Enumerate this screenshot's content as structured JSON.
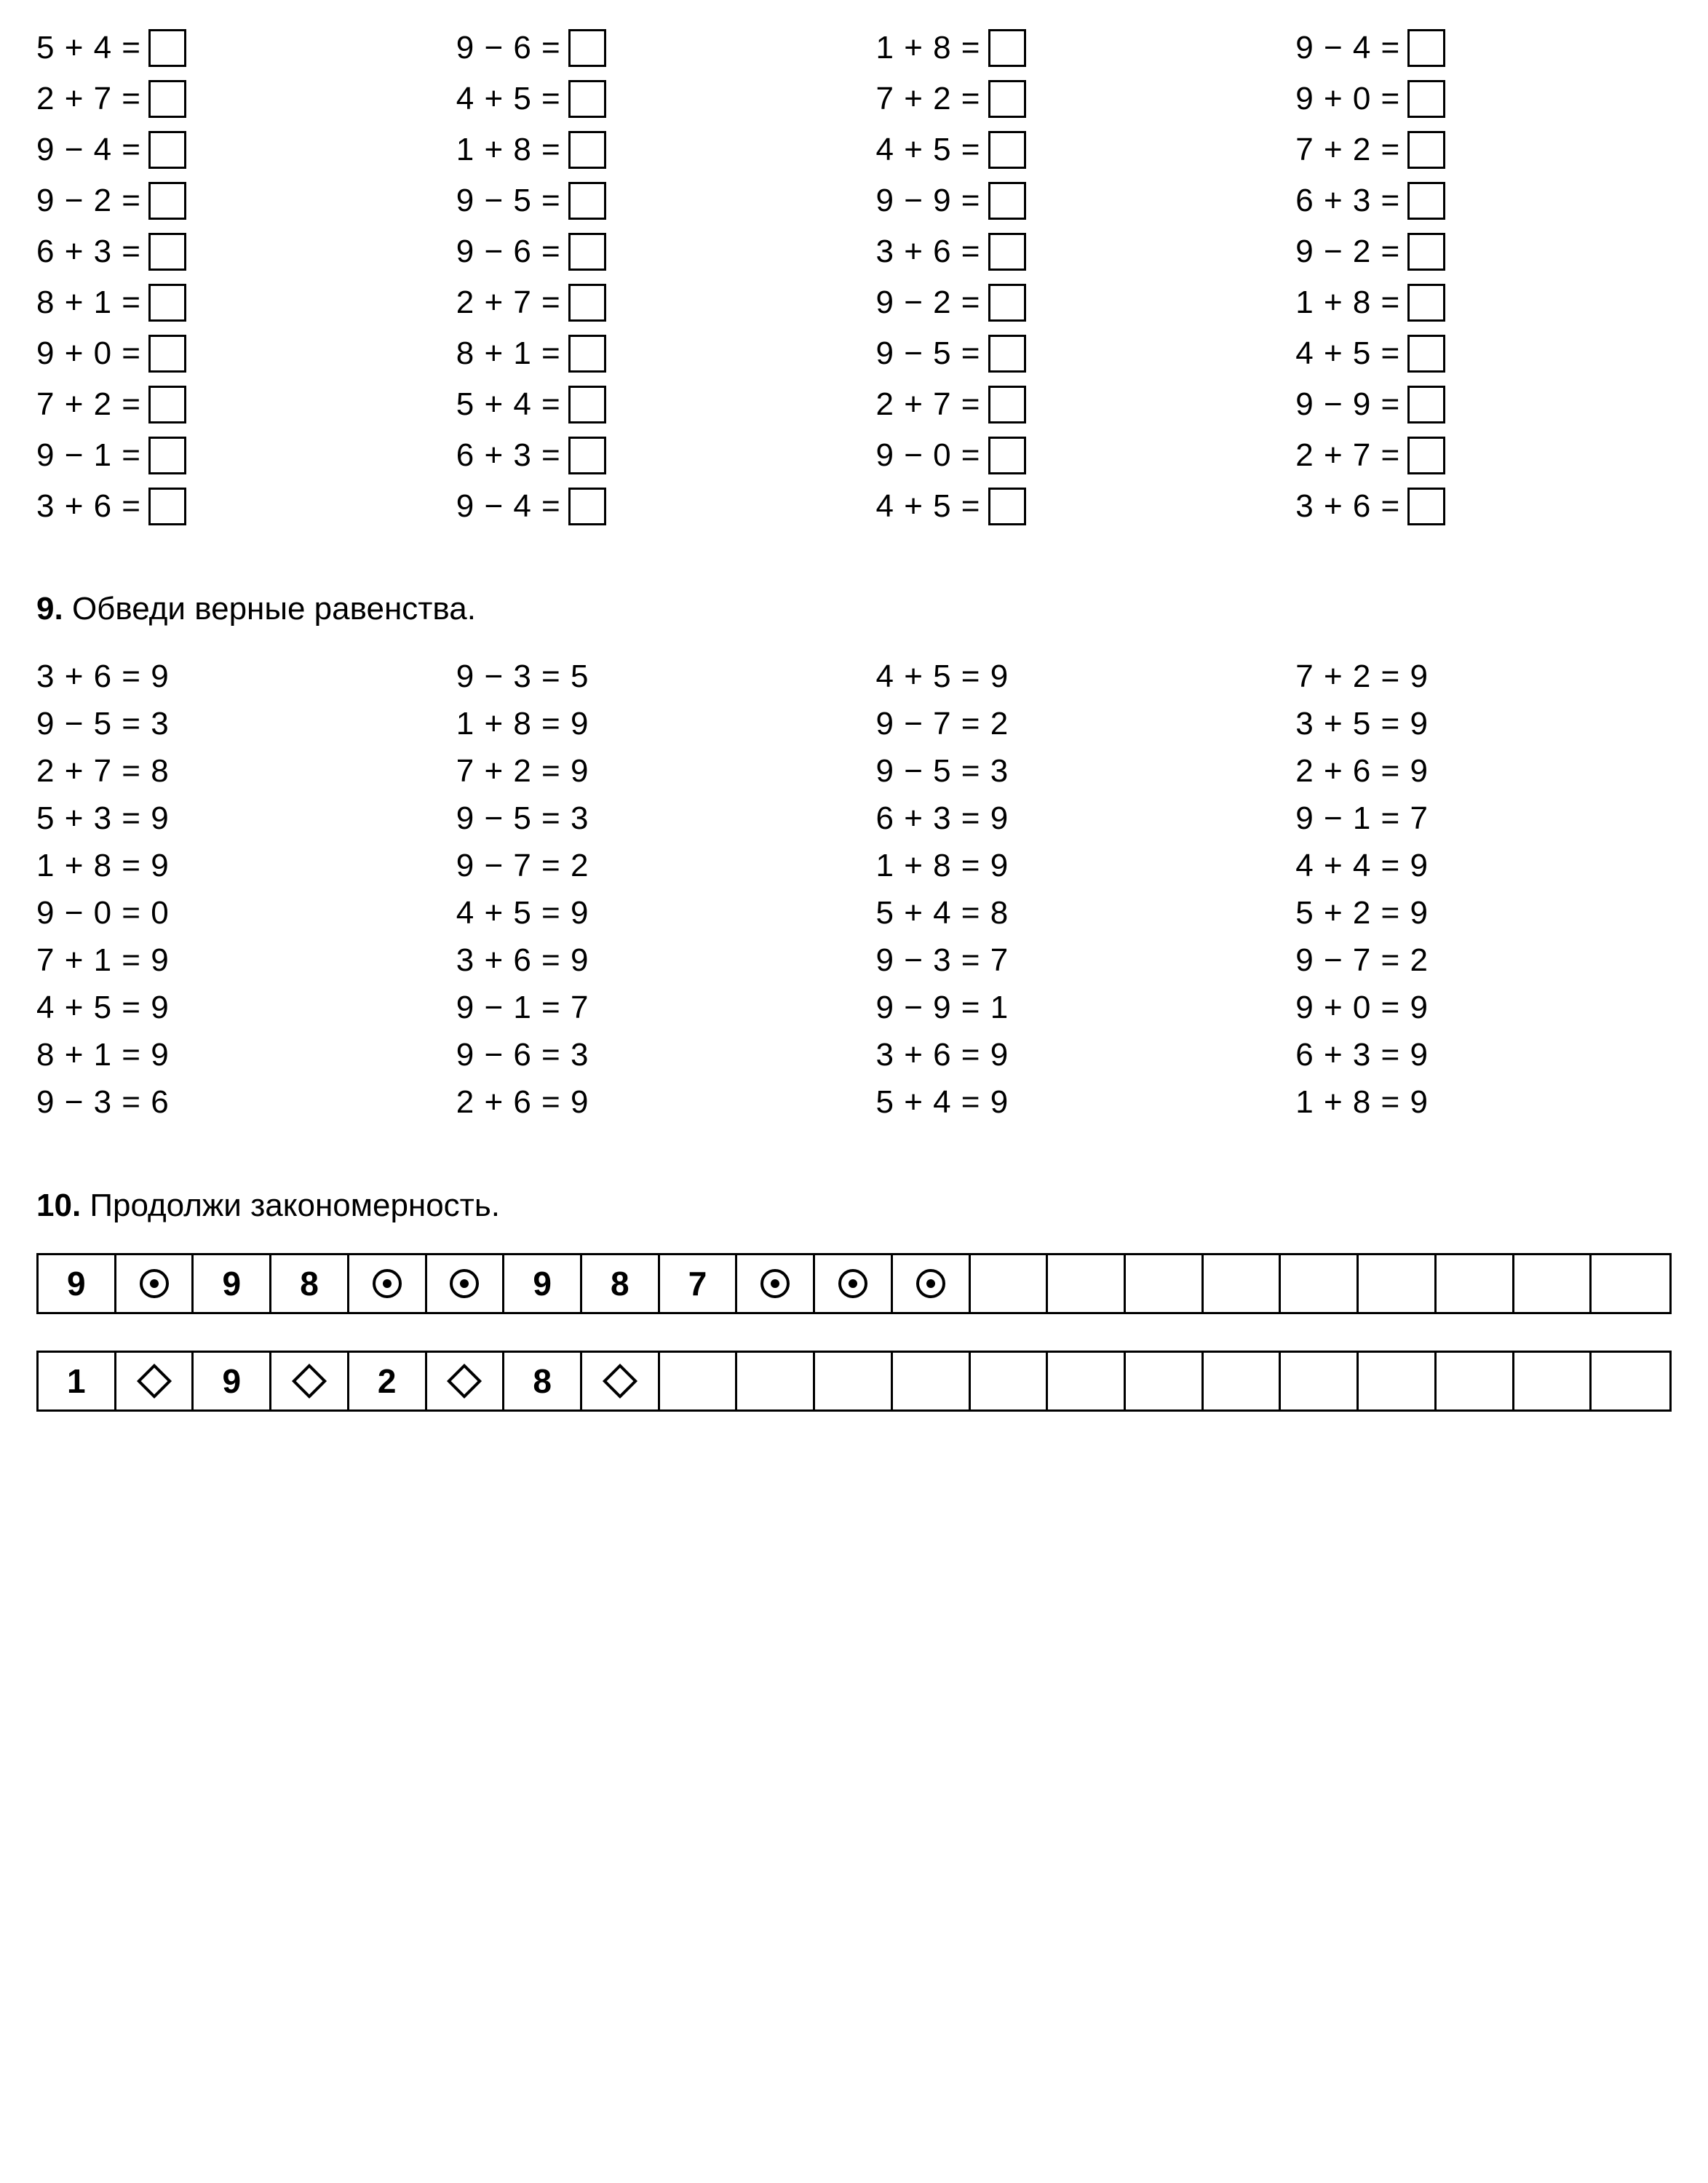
{
  "section8": {
    "columns": [
      [
        "5 + 4 =",
        "2 + 7 =",
        "9 − 4 =",
        "9 − 2 =",
        "6 + 3 =",
        "8 + 1 =",
        "9 + 0 =",
        "7 + 2 =",
        "9 − 1 =",
        "3 + 6 ="
      ],
      [
        "9 − 6 =",
        "4 + 5 =",
        "1 + 8 =",
        "9 − 5 =",
        "9 − 6 =",
        "2 + 7 =",
        "8 + 1 =",
        "5 + 4 =",
        "6 + 3 =",
        "9 − 4 ="
      ],
      [
        "1 + 8 =",
        "7 + 2 =",
        "4 + 5 =",
        "9 − 9 =",
        "3 + 6 =",
        "9 − 2 =",
        "9 − 5 =",
        "2 + 7 =",
        "9 − 0 =",
        "4 + 5 ="
      ],
      [
        "9 − 4 =",
        "9 + 0 =",
        "7 + 2 =",
        "6 + 3 =",
        "9 − 2 =",
        "1 + 8 =",
        "4 + 5 =",
        "9 − 9 =",
        "2 + 7 =",
        "3 + 6 ="
      ]
    ]
  },
  "section9": {
    "number": "9.",
    "title": "Обведи верные равенства.",
    "columns": [
      [
        "3 + 6 = 9",
        "9 − 5 = 3",
        "2 + 7 = 8",
        "5 + 3 = 9",
        "1 + 8 = 9",
        "9 − 0 = 0",
        "7 + 1 = 9",
        "4 + 5 = 9",
        "8 + 1 = 9",
        "9 − 3 = 6"
      ],
      [
        "9 − 3 = 5",
        "1 + 8 = 9",
        "7 + 2 = 9",
        "9 − 5 = 3",
        "9 − 7 = 2",
        "4 + 5 = 9",
        "3 + 6 = 9",
        "9 − 1 = 7",
        "9 − 6 = 3",
        "2 + 6 = 9"
      ],
      [
        "4 + 5 = 9",
        "9 − 7 = 2",
        "9 − 5 = 3",
        "6 + 3 = 9",
        "1 + 8 = 9",
        "5 + 4 = 8",
        "9 − 3 = 7",
        "9 − 9 = 1",
        "3 + 6 = 9",
        "5 + 4 = 9"
      ],
      [
        "7 + 2 = 9",
        "3 + 5 = 9",
        "2 + 6 = 9",
        "9 − 1 = 7",
        "4 + 4 = 9",
        "5 + 2 = 9",
        "9 − 7 = 2",
        "9 + 0 = 9",
        "6 + 3 = 9",
        "1 + 8 = 9"
      ]
    ]
  },
  "section10": {
    "number": "10.",
    "title": "Продолжи закономерность.",
    "strips": [
      {
        "total_cells": 21,
        "cells": [
          "9",
          "⊙",
          "9",
          "8",
          "⊙",
          "⊙",
          "9",
          "8",
          "7",
          "⊙",
          "⊙",
          "⊙"
        ]
      },
      {
        "total_cells": 21,
        "cells": [
          "1",
          "◇",
          "9",
          "◇",
          "2",
          "◇",
          "8",
          "◇"
        ]
      }
    ]
  },
  "symbols": {
    "circle_dot": "⊙",
    "diamond": "◇"
  },
  "colors": {
    "text": "#000000",
    "background": "#ffffff",
    "border": "#000000"
  }
}
